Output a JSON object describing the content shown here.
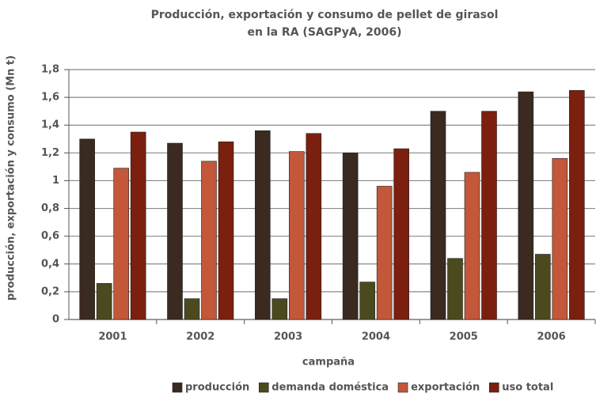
{
  "chart_data": {
    "type": "bar",
    "title": [
      "Producción, exportación y consumo de pellet de girasol",
      "en la RA (SAGPyA, 2006)"
    ],
    "x_label": "campaña",
    "y_label": "producción, exportación y consumo (Mn t)",
    "categories": [
      "2001",
      "2002",
      "2003",
      "2004",
      "2005",
      "2006"
    ],
    "series": [
      {
        "name": "producción",
        "color": "#3a2a1f",
        "values": [
          1.3,
          1.27,
          1.36,
          1.2,
          1.5,
          1.64
        ]
      },
      {
        "name": "demanda doméstica",
        "color": "#4b4a1f",
        "values": [
          0.26,
          0.15,
          0.15,
          0.27,
          0.44,
          0.47
        ]
      },
      {
        "name": "exportación",
        "color": "#c2573a",
        "values": [
          1.09,
          1.14,
          1.21,
          0.96,
          1.06,
          1.16
        ]
      },
      {
        "name": "uso total",
        "color": "#7b1f0f",
        "values": [
          1.35,
          1.28,
          1.34,
          1.23,
          1.5,
          1.65
        ]
      }
    ],
    "ylim": [
      0,
      1.8
    ],
    "yticks": [
      0,
      {
        "value": 0.2,
        "label": "0,2"
      },
      {
        "value": 0.4,
        "label": "0,4"
      },
      {
        "value": 0.6,
        "label": "0,6"
      },
      {
        "value": 0.8,
        "label": "0,8"
      },
      1,
      {
        "value": 1.2,
        "label": "1,2"
      },
      {
        "value": 1.4,
        "label": "1,4"
      },
      {
        "value": 1.6,
        "label": "1,6"
      },
      {
        "value": 1.8,
        "label": "1,8"
      }
    ],
    "grid": true,
    "legend": "bottom"
  }
}
